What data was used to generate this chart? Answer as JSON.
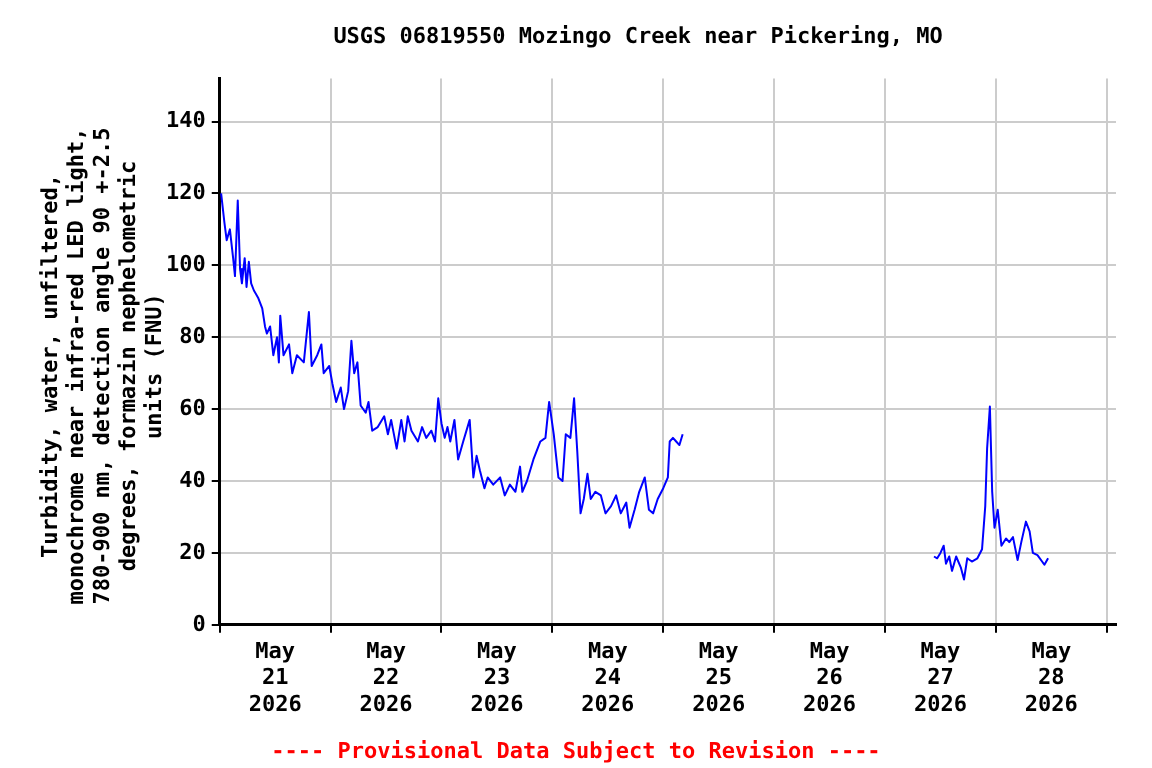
{
  "chart_data": {
    "type": "line",
    "title": "USGS 06819550 Mozingo Creek near Pickering, MO",
    "ylabel": "Turbidity, water, unfiltered, monochrome near infra-red LED light, 780-900 nm, detection angle 90 +-2.5 degrees, formazin nephelometric units (FNU)",
    "annotations": [
      "---- Provisional Data Subject to Revision ----"
    ],
    "xlim": [
      "2026-05-21T00:00",
      "2026-05-29T02:00"
    ],
    "ylim": [
      0,
      152
    ],
    "yticks": [
      0,
      20,
      40,
      60,
      80,
      100,
      120,
      140
    ],
    "xticks": [
      {
        "value": "2026-05-21T00:00",
        "label": null
      },
      {
        "value": "2026-05-21T12:00",
        "label": "May 21 2026"
      },
      {
        "value": "2026-05-22T00:00",
        "label": null
      },
      {
        "value": "2026-05-22T12:00",
        "label": "May 22 2026"
      },
      {
        "value": "2026-05-23T00:00",
        "label": null
      },
      {
        "value": "2026-05-23T12:00",
        "label": "May 23 2026"
      },
      {
        "value": "2026-05-24T00:00",
        "label": null
      },
      {
        "value": "2026-05-24T12:00",
        "label": "May 24 2026"
      },
      {
        "value": "2026-05-25T00:00",
        "label": null
      },
      {
        "value": "2026-05-25T12:00",
        "label": "May 25 2026"
      },
      {
        "value": "2026-05-26T00:00",
        "label": null
      },
      {
        "value": "2026-05-26T12:00",
        "label": "May 26 2026"
      },
      {
        "value": "2026-05-27T00:00",
        "label": null
      },
      {
        "value": "2026-05-27T12:00",
        "label": "May 27 2026"
      },
      {
        "value": "2026-05-28T00:00",
        "label": null
      },
      {
        "value": "2026-05-28T12:00",
        "label": "May 28 2026"
      },
      {
        "value": "2026-05-29T00:00",
        "label": null
      }
    ],
    "grid": true,
    "legend": false,
    "marker": "none",
    "line_style": "solid",
    "series": [
      {
        "color": "#0000ff",
        "x": [
          "2026-05-21T00:18",
          "2026-05-21T01:00",
          "2026-05-21T01:30",
          "2026-05-21T02:12",
          "2026-05-21T02:54",
          "2026-05-21T03:18",
          "2026-05-21T03:54",
          "2026-05-21T04:24",
          "2026-05-21T04:48",
          "2026-05-21T05:24",
          "2026-05-21T05:48",
          "2026-05-21T06:18",
          "2026-05-21T06:48",
          "2026-05-21T07:24",
          "2026-05-21T08:18",
          "2026-05-21T09:12",
          "2026-05-21T09:48",
          "2026-05-21T10:12",
          "2026-05-21T10:54",
          "2026-05-21T11:36",
          "2026-05-21T12:24",
          "2026-05-21T12:48",
          "2026-05-21T13:06",
          "2026-05-21T13:48",
          "2026-05-21T15:00",
          "2026-05-21T15:42",
          "2026-05-21T16:42",
          "2026-05-21T18:12",
          "2026-05-21T19:18",
          "2026-05-21T19:54",
          "2026-05-21T21:06",
          "2026-05-21T22:00",
          "2026-05-21T22:30",
          "2026-05-21T23:42",
          "2026-05-22T00:24",
          "2026-05-22T01:12",
          "2026-05-22T02:12",
          "2026-05-22T02:54",
          "2026-05-22T03:48",
          "2026-05-22T04:30",
          "2026-05-22T05:06",
          "2026-05-22T05:48",
          "2026-05-22T06:30",
          "2026-05-22T07:36",
          "2026-05-22T08:12",
          "2026-05-22T09:00",
          "2026-05-22T10:12",
          "2026-05-22T11:36",
          "2026-05-22T12:24",
          "2026-05-22T13:06",
          "2026-05-22T14:18",
          "2026-05-22T15:18",
          "2026-05-22T16:00",
          "2026-05-22T16:42",
          "2026-05-22T17:30",
          "2026-05-22T18:54",
          "2026-05-22T19:48",
          "2026-05-22T20:42",
          "2026-05-22T21:48",
          "2026-05-22T22:36",
          "2026-05-22T23:18",
          "2026-05-23T00:00",
          "2026-05-23T00:42",
          "2026-05-23T01:18",
          "2026-05-23T01:54",
          "2026-05-23T02:12",
          "2026-05-23T02:48",
          "2026-05-23T03:36",
          "2026-05-23T04:42",
          "2026-05-23T06:06",
          "2026-05-23T06:54",
          "2026-05-23T07:36",
          "2026-05-23T08:18",
          "2026-05-23T09:18",
          "2026-05-23T10:00",
          "2026-05-23T11:12",
          "2026-05-23T12:42",
          "2026-05-23T13:42",
          "2026-05-23T14:48",
          "2026-05-23T16:00",
          "2026-05-23T17:00",
          "2026-05-23T17:30",
          "2026-05-23T18:30",
          "2026-05-23T19:54",
          "2026-05-23T21:24",
          "2026-05-23T22:30",
          "2026-05-23T23:18",
          "2026-05-24T00:18",
          "2026-05-24T01:18",
          "2026-05-24T02:12",
          "2026-05-24T02:54",
          "2026-05-24T03:54",
          "2026-05-24T04:42",
          "2026-05-24T05:24",
          "2026-05-24T06:06",
          "2026-05-24T06:48",
          "2026-05-24T07:36",
          "2026-05-24T08:18",
          "2026-05-24T09:18",
          "2026-05-24T10:30",
          "2026-05-24T11:30",
          "2026-05-24T12:42",
          "2026-05-24T13:48",
          "2026-05-24T14:48",
          "2026-05-24T16:00",
          "2026-05-24T16:42",
          "2026-05-24T17:48",
          "2026-05-24T18:48",
          "2026-05-24T20:00",
          "2026-05-24T20:54",
          "2026-05-24T21:48",
          "2026-05-24T22:48",
          "2026-05-25T00:00",
          "2026-05-25T01:00",
          "2026-05-25T01:24",
          "2026-05-25T02:06",
          "2026-05-25T02:48",
          "2026-05-25T03:30",
          "2026-05-25T04:12",
          "2026-05-26T07:00",
          "2026-05-27T10:36",
          "2026-05-27T11:18",
          "2026-05-27T12:00",
          "2026-05-27T12:42",
          "2026-05-27T13:12",
          "2026-05-27T13:54",
          "2026-05-27T14:30",
          "2026-05-27T15:24",
          "2026-05-27T16:24",
          "2026-05-27T17:06",
          "2026-05-27T17:48",
          "2026-05-27T18:48",
          "2026-05-27T20:00",
          "2026-05-27T21:00",
          "2026-05-27T21:42",
          "2026-05-27T22:06",
          "2026-05-27T22:42",
          "2026-05-27T23:12",
          "2026-05-27T23:42",
          "2026-05-28T00:24",
          "2026-05-28T01:12",
          "2026-05-28T02:12",
          "2026-05-28T02:54",
          "2026-05-28T03:42",
          "2026-05-28T04:42",
          "2026-05-28T05:30",
          "2026-05-28T06:30",
          "2026-05-28T07:18",
          "2026-05-28T08:00",
          "2026-05-28T09:00",
          "2026-05-28T10:00",
          "2026-05-28T10:30",
          "2026-05-28T11:18"
        ],
        "values": [
          120,
          112,
          107,
          110,
          102,
          97,
          118,
          99,
          95,
          102,
          94,
          101,
          95,
          93,
          91,
          88,
          83,
          81,
          83,
          75,
          80,
          73,
          86,
          75,
          78,
          70,
          75,
          73,
          87,
          72,
          75,
          78,
          70,
          72,
          67,
          62,
          66,
          60,
          65,
          79,
          70,
          73,
          61,
          59,
          62,
          54,
          55,
          58,
          53,
          57,
          49,
          57,
          51,
          58,
          54,
          51,
          55,
          52,
          54,
          51,
          63,
          56,
          52,
          55,
          51,
          51,
          57,
          46,
          51,
          57,
          41,
          47,
          43,
          38,
          41,
          39,
          41,
          36,
          39,
          37,
          44,
          37,
          40,
          46,
          51,
          52,
          62,
          53,
          41,
          40,
          53,
          52,
          63,
          48,
          31,
          35,
          42,
          35,
          37,
          36,
          31,
          33,
          36,
          31,
          34,
          27,
          32,
          37,
          41,
          32,
          31,
          35,
          38,
          41,
          51,
          52,
          51,
          50,
          53,
          null,
          19,
          18.5,
          20,
          22,
          17,
          19,
          15,
          19,
          16,
          12.6,
          18.5,
          17.6,
          18.5,
          21,
          33,
          49,
          60.7,
          37,
          27,
          32,
          22,
          24,
          23,
          24.4,
          18,
          23,
          28.7,
          26,
          20,
          19.4,
          17.6,
          16.7,
          18.5
        ]
      }
    ]
  }
}
